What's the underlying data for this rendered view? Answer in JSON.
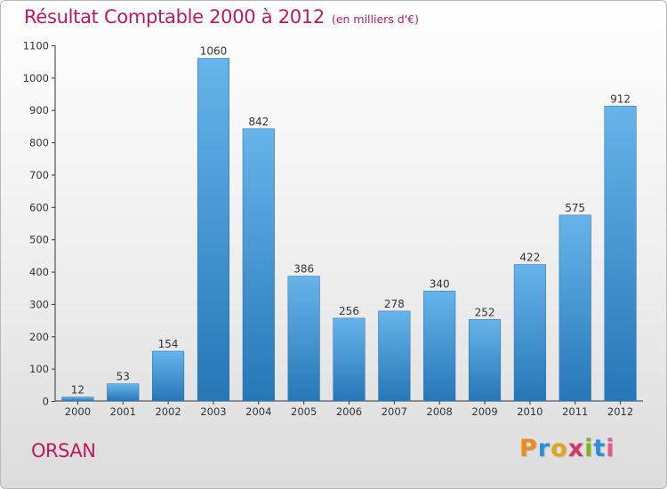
{
  "title": "Résultat Comptable 2000 à 2012",
  "title_unit": "(en milliers d'€)",
  "commune": "ORSAN",
  "logo": {
    "letters": [
      "P",
      "r",
      "o",
      "x",
      "i",
      "t",
      "i"
    ],
    "colors": [
      "#f08a1c",
      "#2a8fd8",
      "#e8a21a",
      "#d6336c",
      "#7cb518",
      "#2a8fd8",
      "#e05a9a"
    ]
  },
  "colors": {
    "title": "#c1185c",
    "bar_top": "#67b4ea",
    "bar_bottom": "#2677b8"
  },
  "chart_data": {
    "type": "bar",
    "categories": [
      "2000",
      "2001",
      "2002",
      "2003",
      "2004",
      "2005",
      "2006",
      "2007",
      "2008",
      "2009",
      "2010",
      "2011",
      "2012"
    ],
    "values": [
      12,
      53,
      154,
      1060,
      842,
      386,
      256,
      278,
      340,
      252,
      422,
      575,
      912
    ],
    "title": "Résultat Comptable 2000 à 2012",
    "xlabel": "",
    "ylabel": "",
    "ylim": [
      0,
      1100
    ],
    "yticks": [
      0,
      100,
      200,
      300,
      400,
      500,
      600,
      700,
      800,
      900,
      1000,
      1100
    ],
    "grid": false,
    "legend": "none"
  }
}
